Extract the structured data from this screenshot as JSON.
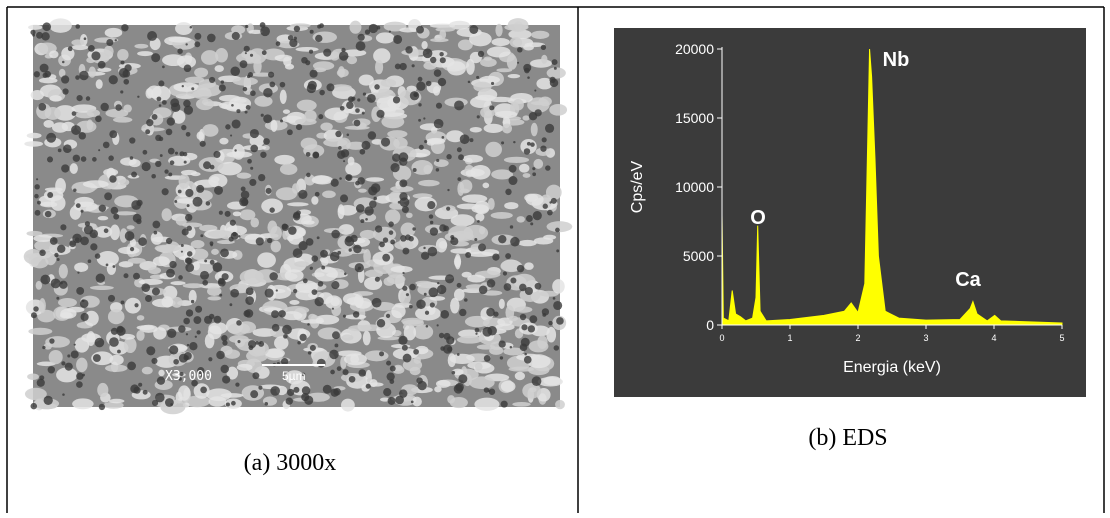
{
  "sem_image": {
    "magnification_label": "X3,000",
    "scale_label": "5µm"
  },
  "captions": [
    "(a) 3000x",
    "(b) EDS"
  ],
  "chart_data": {
    "type": "area",
    "x_label": "Energia (keV)",
    "y_label": "Cps/eV",
    "x": [
      0,
      0.02,
      0.1,
      0.15,
      0.2,
      0.27,
      0.35,
      0.45,
      0.5,
      0.525,
      0.56,
      0.65,
      1.0,
      1.5,
      1.8,
      1.9,
      2.0,
      2.1,
      2.15,
      2.17,
      2.2,
      2.25,
      2.3,
      2.4,
      2.6,
      3.0,
      3.5,
      3.65,
      3.69,
      3.75,
      3.9,
      4.01,
      4.1,
      5.0
    ],
    "values": [
      8000,
      500,
      300,
      2500,
      800,
      600,
      300,
      500,
      2000,
      7200,
      1000,
      300,
      400,
      700,
      1000,
      1600,
      900,
      3000,
      15000,
      20000,
      18000,
      12000,
      5000,
      1000,
      500,
      350,
      400,
      1200,
      1700,
      800,
      300,
      700,
      300,
      150
    ],
    "color": "#ffff00",
    "xlim": [
      0,
      5
    ],
    "xticks": [
      0,
      1,
      2,
      3,
      4,
      5
    ],
    "ylim": [
      0,
      20000
    ],
    "yticks": [
      0,
      5000,
      10000,
      15000,
      20000
    ],
    "annotations": [
      "O",
      "Nb",
      "Ca"
    ]
  }
}
